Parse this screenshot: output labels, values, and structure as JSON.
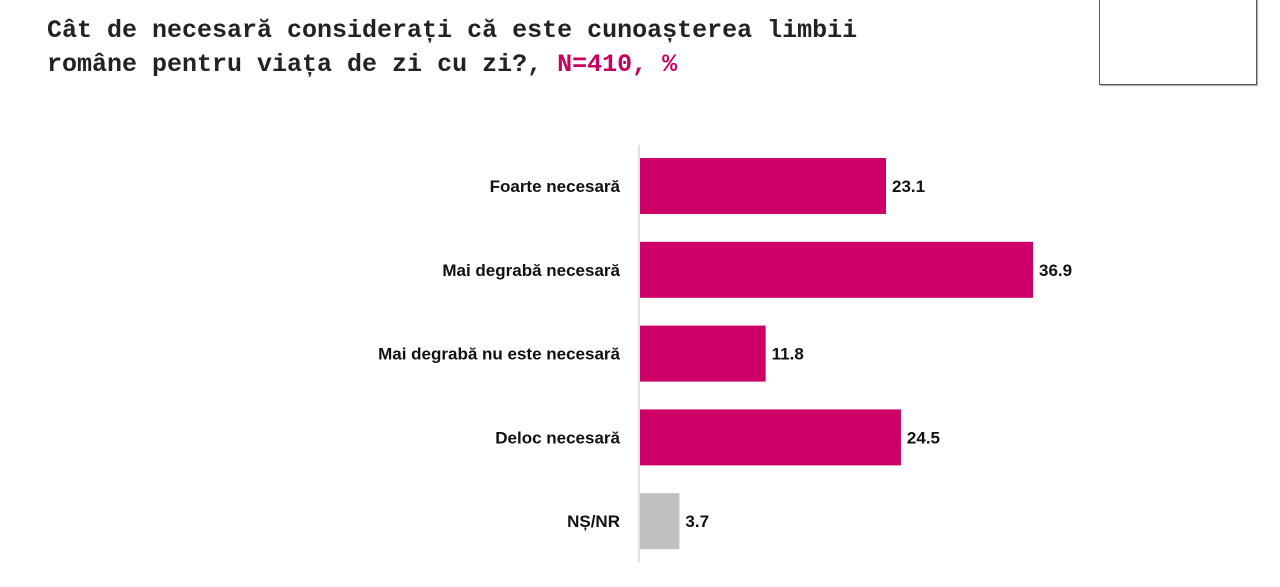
{
  "title": {
    "line1": "Cât de necesară considerați că este cunoașterea limbii",
    "line2": "române pentru viața de zi cu zi?,",
    "sample": " N=410, %"
  },
  "colors": {
    "main": "#cc0066",
    "other": "#c0c0c0",
    "accent_text": "#c8005f"
  },
  "chart_data": {
    "type": "bar",
    "orientation": "horizontal",
    "title": "Cât de necesară considerați că este cunoașterea limbii române pentru viața de zi cu zi?, N=410, %",
    "categories": [
      "Foarte necesară",
      "Mai degrabă necesară",
      "Mai degrabă nu este necesară",
      "Deloc necesară",
      "NȘ/NR"
    ],
    "values": [
      23.1,
      36.9,
      11.8,
      24.5,
      3.7
    ],
    "value_labels": [
      "23.1",
      "36.9",
      "11.8",
      "24.5",
      "3.7"
    ],
    "bar_colors": [
      "#cc0066",
      "#cc0066",
      "#cc0066",
      "#cc0066",
      "#c0c0c0"
    ],
    "xlabel": "",
    "ylabel": "",
    "xlim": [
      0,
      40
    ],
    "grid": false,
    "legend": "none"
  }
}
